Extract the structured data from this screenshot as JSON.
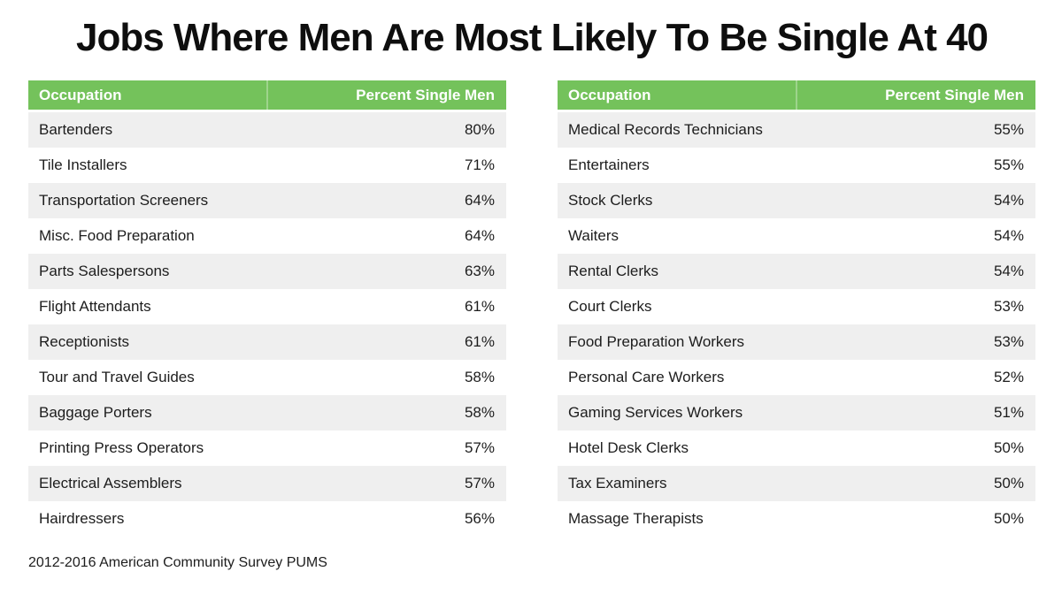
{
  "title": "Jobs Where Men Are Most Likely To Be Single At 40",
  "source_note": "2012-2016 American Community Survey PUMS",
  "columns": {
    "occupation": "Occupation",
    "percent": "Percent Single Men"
  },
  "colors": {
    "header_bg": "#74c25b",
    "header_text": "#ffffff",
    "stripe": "#efefef",
    "row_text": "#1d1d1d"
  },
  "tables": [
    {
      "rows": [
        {
          "occupation": "Bartenders",
          "percent": "80%"
        },
        {
          "occupation": "Tile Installers",
          "percent": "71%"
        },
        {
          "occupation": "Transportation Screeners",
          "percent": "64%"
        },
        {
          "occupation": "Misc. Food Preparation",
          "percent": "64%"
        },
        {
          "occupation": "Parts Salespersons",
          "percent": "63%"
        },
        {
          "occupation": "Flight Attendants",
          "percent": "61%"
        },
        {
          "occupation": "Receptionists",
          "percent": "61%"
        },
        {
          "occupation": "Tour and Travel Guides",
          "percent": "58%"
        },
        {
          "occupation": "Baggage Porters",
          "percent": "58%"
        },
        {
          "occupation": "Printing Press Operators",
          "percent": "57%"
        },
        {
          "occupation": "Electrical Assemblers",
          "percent": "57%"
        },
        {
          "occupation": "Hairdressers",
          "percent": "56%"
        }
      ]
    },
    {
      "rows": [
        {
          "occupation": "Medical Records Technicians",
          "percent": "55%"
        },
        {
          "occupation": "Entertainers",
          "percent": "55%"
        },
        {
          "occupation": "Stock Clerks",
          "percent": "54%"
        },
        {
          "occupation": "Waiters",
          "percent": "54%"
        },
        {
          "occupation": "Rental Clerks",
          "percent": "54%"
        },
        {
          "occupation": "Court Clerks",
          "percent": "53%"
        },
        {
          "occupation": "Food Preparation Workers",
          "percent": "53%"
        },
        {
          "occupation": "Personal Care Workers",
          "percent": "52%"
        },
        {
          "occupation": "Gaming Services Workers",
          "percent": "51%"
        },
        {
          "occupation": "Hotel Desk Clerks",
          "percent": "50%"
        },
        {
          "occupation": "Tax Examiners",
          "percent": "50%"
        },
        {
          "occupation": "Massage Therapists",
          "percent": "50%"
        }
      ]
    }
  ],
  "chart_data": {
    "type": "table",
    "title": "Jobs Where Men Are Most Likely To Be Single At 40",
    "columns": [
      "Occupation",
      "Percent Single Men"
    ],
    "rows": [
      [
        "Bartenders",
        80
      ],
      [
        "Tile Installers",
        71
      ],
      [
        "Transportation Screeners",
        64
      ],
      [
        "Misc. Food Preparation",
        64
      ],
      [
        "Parts Salespersons",
        63
      ],
      [
        "Flight Attendants",
        61
      ],
      [
        "Receptionists",
        61
      ],
      [
        "Tour and Travel Guides",
        58
      ],
      [
        "Baggage Porters",
        58
      ],
      [
        "Printing Press Operators",
        57
      ],
      [
        "Electrical Assemblers",
        57
      ],
      [
        "Hairdressers",
        56
      ],
      [
        "Medical Records Technicians",
        55
      ],
      [
        "Entertainers",
        55
      ],
      [
        "Stock Clerks",
        54
      ],
      [
        "Waiters",
        54
      ],
      [
        "Rental Clerks",
        54
      ],
      [
        "Court Clerks",
        53
      ],
      [
        "Food Preparation Workers",
        53
      ],
      [
        "Personal Care Workers",
        52
      ],
      [
        "Gaming Services Workers",
        51
      ],
      [
        "Hotel Desk Clerks",
        50
      ],
      [
        "Tax Examiners",
        50
      ],
      [
        "Massage Therapists",
        50
      ]
    ],
    "value_unit": "%",
    "note": "2012-2016 American Community Survey PUMS"
  }
}
